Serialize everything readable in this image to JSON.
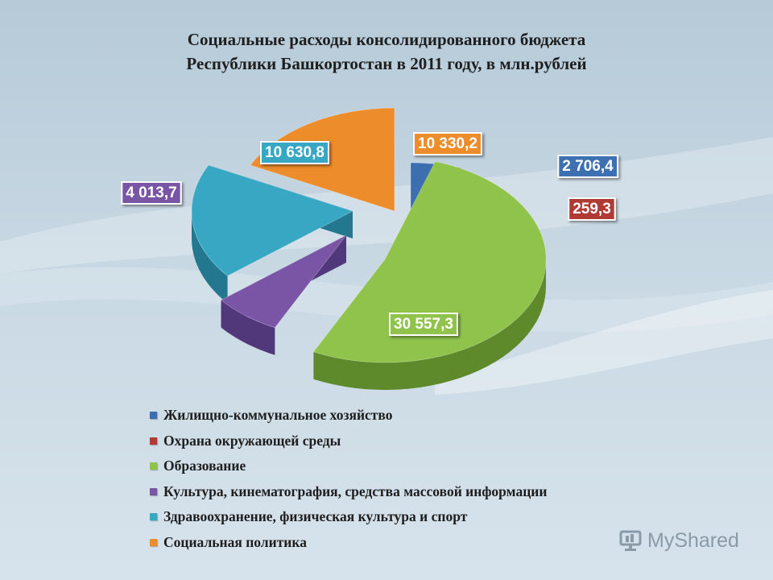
{
  "title": {
    "line1": "Социальные расходы консолидированного бюджета",
    "line2": "Республики Башкортостан в 2011 году, в млн.рублей"
  },
  "chart_data": {
    "type": "pie",
    "title": "Социальные расходы консолидированного бюджета Республики Башкортостан в 2011 году, в млн.рублей",
    "legend_position": "bottom",
    "series": [
      {
        "name": "Жилищно-коммунальное хозяйство",
        "value": 2706.4,
        "label": "2 706,4",
        "color": "#3d6fb0",
        "side": "#264d80"
      },
      {
        "name": "Охрана окружающей среды",
        "value": 259.3,
        "label": "259,3",
        "color": "#b03a36",
        "side": "#7c2522"
      },
      {
        "name": "Образование",
        "value": 30557.3,
        "label": "30 557,3",
        "color": "#8fc34b",
        "side": "#5f8a2c"
      },
      {
        "name": "Культура, кинематография, средства массовой информации",
        "value": 4013.7,
        "label": "4 013,7",
        "color": "#7a55a6",
        "side": "#51387a"
      },
      {
        "name": "Здравоохранение, физическая культура и спорт",
        "value": 10630.8,
        "label": "10 630,8",
        "color": "#37a7c4",
        "side": "#23788f"
      },
      {
        "name": "Социальная политика",
        "value": 10330.2,
        "label": "10 330,2",
        "color": "#ec8c2a",
        "side": "#b06218"
      }
    ]
  },
  "brand": {
    "name": "MyShared",
    "icon": "presentation-icon"
  }
}
